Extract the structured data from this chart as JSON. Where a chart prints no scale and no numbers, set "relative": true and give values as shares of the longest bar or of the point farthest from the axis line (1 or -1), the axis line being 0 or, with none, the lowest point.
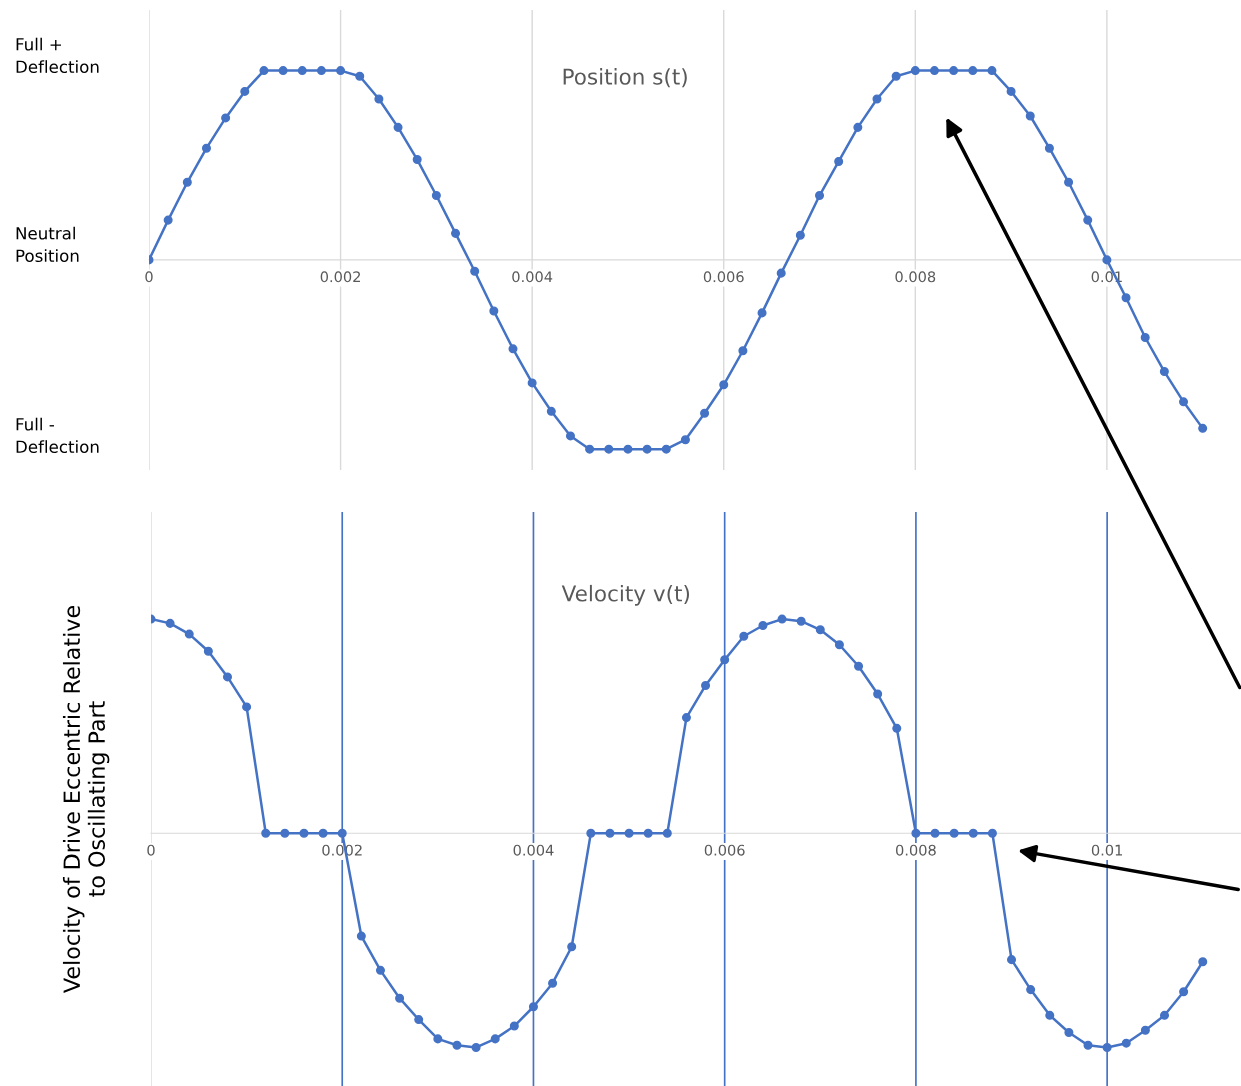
{
  "chart_data": [
    {
      "type": "line",
      "title": "Position s(t)",
      "x": [
        0,
        0.0002,
        0.0004,
        0.0006,
        0.0008,
        0.001,
        0.0012,
        0.0014,
        0.0016,
        0.0018,
        0.002,
        0.0022,
        0.0024,
        0.0026,
        0.0028,
        0.003,
        0.0032,
        0.0034,
        0.0036,
        0.0038,
        0.004,
        0.0042,
        0.0044,
        0.0046,
        0.0048,
        0.005,
        0.0052,
        0.0054,
        0.0056,
        0.0058,
        0.006,
        0.0062,
        0.0064,
        0.0066,
        0.0068,
        0.007,
        0.0072,
        0.0074,
        0.0076,
        0.0078,
        0.008,
        0.0082,
        0.0084,
        0.0086,
        0.0088,
        0.009,
        0.0092,
        0.0094,
        0.0096,
        0.0098,
        0.01,
        0.0102,
        0.0104,
        0.0106,
        0.0108,
        0.011
      ],
      "series": [
        {
          "color": "#4472c4",
          "values": [
            0,
            0.21,
            0.41,
            0.59,
            0.75,
            0.89,
            1,
            1,
            1,
            1,
            1,
            0.97,
            0.85,
            0.7,
            0.53,
            0.34,
            0.14,
            -0.06,
            -0.27,
            -0.47,
            -0.65,
            -0.8,
            -0.93,
            -1,
            -1,
            -1,
            -1,
            -1,
            -0.95,
            -0.81,
            -0.66,
            -0.48,
            -0.28,
            -0.07,
            0.13,
            0.34,
            0.52,
            0.7,
            0.85,
            0.97,
            1,
            1,
            1,
            1,
            1,
            0.89,
            0.76,
            0.59,
            0.41,
            0.21,
            0,
            -0.2,
            -0.41,
            -0.59,
            -0.75,
            -0.89
          ]
        }
      ],
      "marker": "circle",
      "line_style": "solid",
      "grid": "x",
      "xlim": [
        0,
        0.0114
      ],
      "xticks": [
        0,
        0.002,
        0.004,
        0.006,
        0.008,
        0.01
      ],
      "relative": true,
      "annotations": [
        "Full +\nDeflection",
        "Neutral\nPosition",
        "Full -\nDeflection"
      ]
    },
    {
      "type": "line",
      "title": "Velocity v(t)",
      "ylabel": "Velocity of Drive Eccentric Relative\nto Oscillating Part",
      "relative": true,
      "x": [
        0,
        0.0002,
        0.0004,
        0.0006,
        0.0008,
        0.001,
        0.0012,
        0.0014,
        0.0016,
        0.0018,
        0.002,
        0.0022,
        0.0024,
        0.0026,
        0.0028,
        0.003,
        0.0032,
        0.0034,
        0.0036,
        0.0038,
        0.004,
        0.0042,
        0.0044,
        0.0046,
        0.0048,
        0.005,
        0.0052,
        0.0054,
        0.0056,
        0.0058,
        0.006,
        0.0062,
        0.0064,
        0.0066,
        0.0068,
        0.007,
        0.0072,
        0.0074,
        0.0076,
        0.0078,
        0.008,
        0.0082,
        0.0084,
        0.0086,
        0.0088,
        0.009,
        0.0092,
        0.0094,
        0.0096,
        0.0098,
        0.01,
        0.0102,
        0.0104,
        0.0106,
        0.0108,
        0.011
      ],
      "series": [
        {
          "color": "#4472c4",
          "values": [
            1,
            0.98,
            0.93,
            0.85,
            0.73,
            0.59,
            0,
            0,
            0,
            0,
            0,
            -0.48,
            -0.64,
            -0.77,
            -0.87,
            -0.96,
            -0.99,
            -1,
            -0.96,
            -0.9,
            -0.81,
            -0.7,
            -0.53,
            0,
            0,
            0,
            0,
            0,
            0.54,
            0.69,
            0.81,
            0.92,
            0.97,
            1,
            0.99,
            0.95,
            0.88,
            0.78,
            0.65,
            0.49,
            0,
            0,
            0,
            0,
            0,
            -0.59,
            -0.73,
            -0.85,
            -0.93,
            -0.99,
            -1,
            -0.98,
            -0.92,
            -0.85,
            -0.74,
            -0.6
          ]
        }
      ],
      "marker": "circle",
      "line_style": "solid",
      "xlim": [
        0,
        0.0114
      ],
      "xticks": [
        0,
        0.002,
        0.004,
        0.006,
        0.008,
        0.01
      ],
      "ref_lines": [
        {
          "axis": "x",
          "value": 0.002,
          "color": "#4472c4"
        },
        {
          "axis": "x",
          "value": 0.004,
          "color": "#4472c4"
        },
        {
          "axis": "x",
          "value": 0.006,
          "color": "#4472c4"
        },
        {
          "axis": "x",
          "value": 0.008,
          "color": "#4472c4"
        },
        {
          "axis": "x",
          "value": 0.01,
          "color": "#4472c4"
        }
      ]
    }
  ]
}
